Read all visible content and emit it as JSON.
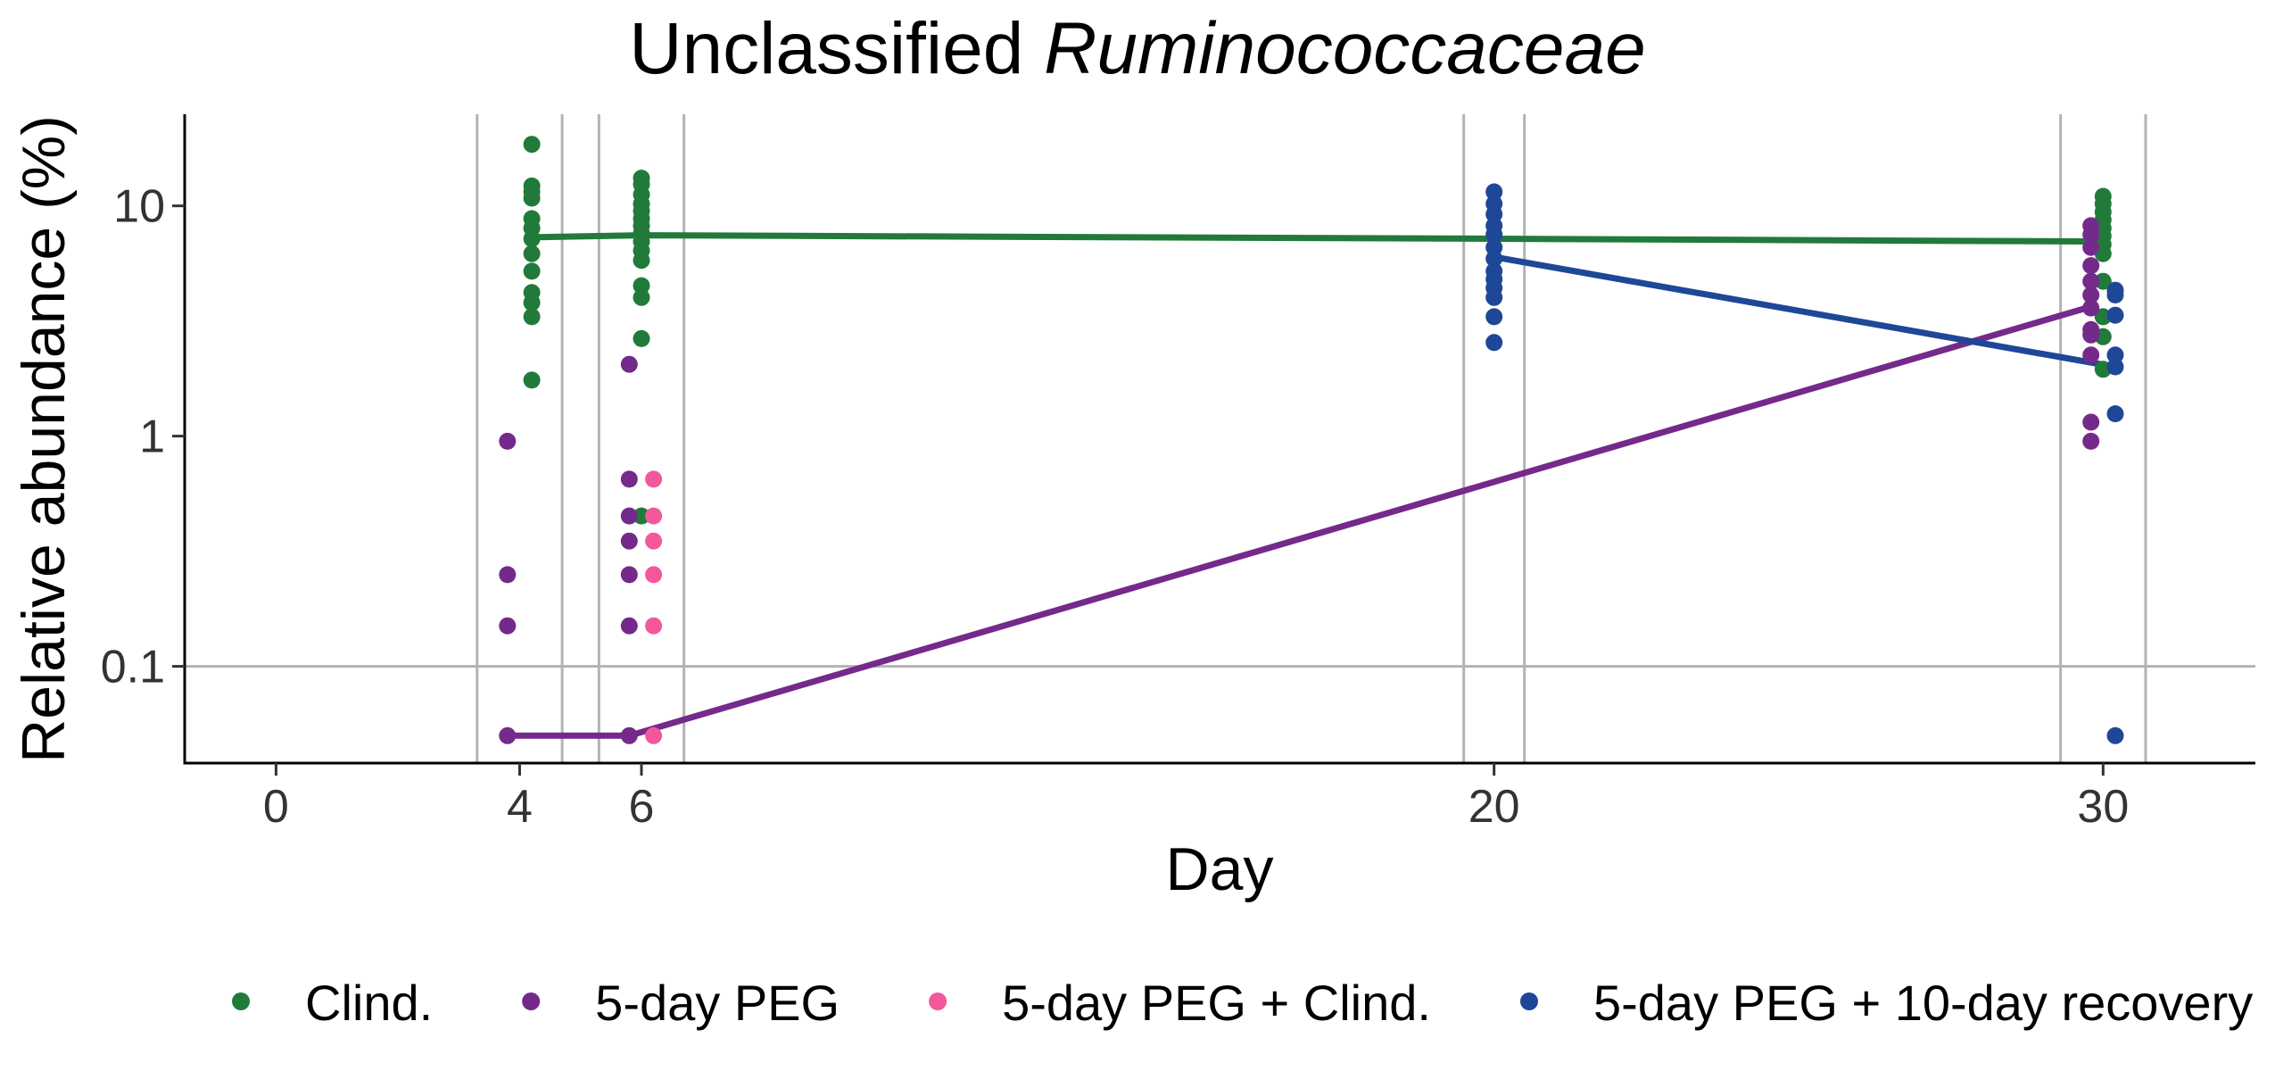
{
  "chart_data": {
    "type": "scatter",
    "title": "Unclassified",
    "title_italic": "Ruminococcaceae",
    "xlabel": "Day",
    "ylabel": "Relative abundance (%)",
    "x_ticks": [
      0,
      4,
      6,
      20,
      30
    ],
    "xlim": [
      -1.5,
      32.5
    ],
    "y_scale": "log",
    "y_ticks": [
      {
        "value": 0.1,
        "label": "0.1"
      },
      {
        "value": 1,
        "label": "1"
      },
      {
        "value": 10,
        "label": "10"
      }
    ],
    "ylim": [
      0.038,
      25
    ],
    "grid": "major lines at y = 0.1 and around each sampling day",
    "legend_position": "bottom",
    "series": [
      {
        "name": "Clind.",
        "color": "#217a3a",
        "points": [
          [
            4.2,
            18.5
          ],
          [
            4.2,
            12.2
          ],
          [
            4.2,
            11.5
          ],
          [
            4.2,
            10.8
          ],
          [
            4.2,
            8.8
          ],
          [
            4.2,
            8.0
          ],
          [
            4.2,
            7.2
          ],
          [
            4.2,
            6.2
          ],
          [
            4.2,
            5.2
          ],
          [
            4.2,
            4.2
          ],
          [
            4.2,
            3.8
          ],
          [
            4.2,
            3.3
          ],
          [
            4.2,
            1.75
          ],
          [
            6.0,
            13.2
          ],
          [
            6.0,
            12.4
          ],
          [
            6.0,
            11.2
          ],
          [
            6.0,
            10.2
          ],
          [
            6.0,
            9.5
          ],
          [
            6.0,
            8.8
          ],
          [
            6.0,
            8.2
          ],
          [
            6.0,
            7.6
          ],
          [
            6.0,
            7.0
          ],
          [
            6.0,
            6.4
          ],
          [
            6.0,
            5.8
          ],
          [
            6.0,
            4.5
          ],
          [
            6.0,
            4.0
          ],
          [
            6.0,
            2.65
          ],
          [
            6.0,
            0.45
          ],
          [
            30.0,
            11.0
          ],
          [
            30.0,
            10.2
          ],
          [
            30.0,
            9.4
          ],
          [
            30.0,
            8.7
          ],
          [
            30.0,
            8.0
          ],
          [
            30.0,
            7.4
          ],
          [
            30.0,
            6.8
          ],
          [
            30.0,
            6.2
          ],
          [
            30.0,
            4.7
          ],
          [
            30.0,
            3.3
          ],
          [
            30.0,
            2.7
          ],
          [
            30.0,
            1.95
          ]
        ],
        "trend": [
          [
            4.2,
            7.3
          ],
          [
            6.0,
            7.45
          ],
          [
            20.0,
            7.2
          ],
          [
            30.0,
            7.0
          ]
        ]
      },
      {
        "name": "5-day PEG",
        "color": "#742a8a",
        "points": [
          [
            3.8,
            0.95
          ],
          [
            3.8,
            0.25
          ],
          [
            3.8,
            0.15
          ],
          [
            3.8,
            0.05
          ],
          [
            5.8,
            2.05
          ],
          [
            5.8,
            0.65
          ],
          [
            5.8,
            0.45
          ],
          [
            5.8,
            0.35
          ],
          [
            5.8,
            0.25
          ],
          [
            5.8,
            0.15
          ],
          [
            5.8,
            0.05
          ],
          [
            29.8,
            8.2
          ],
          [
            29.8,
            7.5
          ],
          [
            29.8,
            6.6
          ],
          [
            29.8,
            5.5
          ],
          [
            29.8,
            4.7
          ],
          [
            29.8,
            4.1
          ],
          [
            29.8,
            3.6
          ],
          [
            29.8,
            2.9
          ],
          [
            29.8,
            2.75
          ],
          [
            29.8,
            2.25
          ],
          [
            29.8,
            1.15
          ],
          [
            29.8,
            0.95
          ]
        ],
        "trend": [
          [
            3.8,
            0.05
          ],
          [
            5.8,
            0.05
          ],
          [
            29.8,
            3.65
          ]
        ]
      },
      {
        "name": "5-day PEG + Clind.",
        "color": "#f2589a",
        "points": [
          [
            6.2,
            0.65
          ],
          [
            6.2,
            0.45
          ],
          [
            6.2,
            0.35
          ],
          [
            6.2,
            0.25
          ],
          [
            6.2,
            0.15
          ],
          [
            6.2,
            0.05
          ]
        ],
        "trend": []
      },
      {
        "name": "5-day PEG + 10-day recovery",
        "color": "#1f4797",
        "points": [
          [
            20.0,
            11.5
          ],
          [
            20.0,
            10.2
          ],
          [
            20.0,
            9.2
          ],
          [
            20.0,
            8.2
          ],
          [
            20.0,
            7.5
          ],
          [
            20.0,
            6.6
          ],
          [
            20.0,
            5.9
          ],
          [
            20.0,
            5.2
          ],
          [
            20.0,
            4.8
          ],
          [
            20.0,
            4.4
          ],
          [
            20.0,
            4.0
          ],
          [
            20.0,
            3.3
          ],
          [
            20.0,
            2.55
          ],
          [
            30.2,
            4.3
          ],
          [
            30.2,
            4.1
          ],
          [
            30.2,
            3.35
          ],
          [
            30.2,
            2.25
          ],
          [
            30.2,
            2.0
          ],
          [
            30.2,
            1.25
          ],
          [
            30.2,
            0.05
          ]
        ],
        "trend": [
          [
            20.0,
            6.0
          ],
          [
            30.2,
            2.0
          ]
        ]
      }
    ]
  }
}
